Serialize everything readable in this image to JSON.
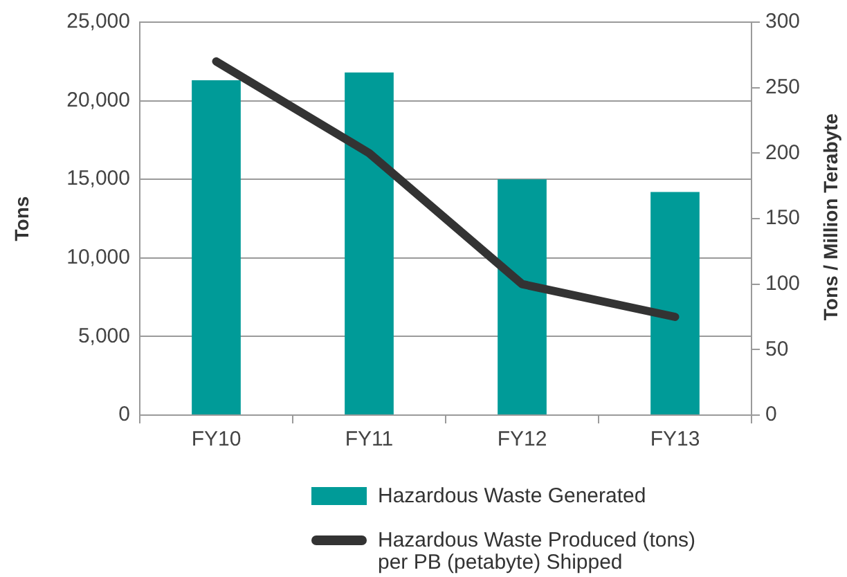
{
  "chart_data": {
    "type": "bar",
    "categories": [
      "FY10",
      "FY11",
      "FY12",
      "FY13"
    ],
    "ylabel": "Tons",
    "y2label": "Tons / Million Terabyte",
    "series": [
      {
        "name": "Hazardous Waste Generated",
        "type": "bar",
        "color": "#009b98",
        "values": [
          21300,
          21800,
          15000,
          14200
        ]
      },
      {
        "name": "Hazardous Waste Produced (tons) per PB (petabyte) Shipped",
        "type": "line",
        "axis": "y2",
        "color": "#333333",
        "values": [
          270,
          200,
          100,
          75
        ]
      }
    ],
    "ylim": [
      0,
      25000
    ],
    "yticks": [
      0,
      {
        "value": 5000,
        "label": "5,000"
      },
      {
        "value": 10000,
        "label": "10,000"
      },
      {
        "value": 15000,
        "label": "15,000"
      },
      {
        "value": 20000,
        "label": "20,000"
      },
      {
        "value": 25000,
        "label": "25,000"
      }
    ],
    "y2lim": [
      0,
      300
    ],
    "y2ticks": [
      0,
      50,
      100,
      150,
      200,
      250,
      300
    ],
    "grid": "y",
    "legend": "bottom"
  }
}
